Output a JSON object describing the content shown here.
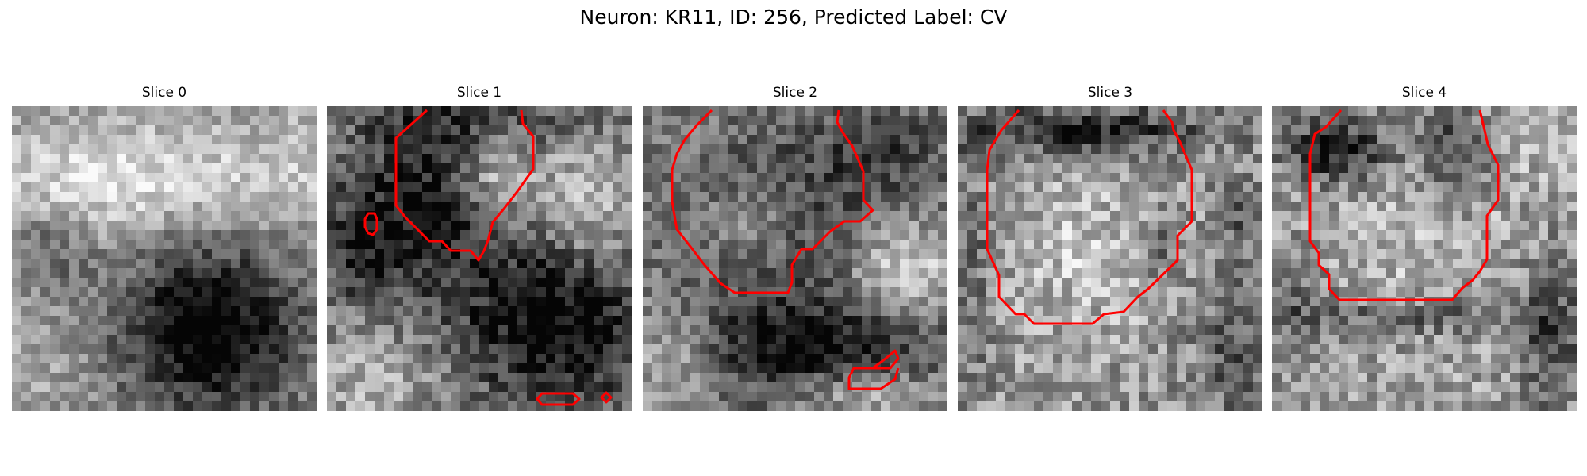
{
  "figure": {
    "title": "Neuron: KR11, ID: 256, Predicted Label: CV"
  },
  "overlay_color": "#ff0000",
  "panels": [
    {
      "title": "Slice 0"
    },
    {
      "title": "Slice 1"
    },
    {
      "title": "Slice 2"
    },
    {
      "title": "Slice 3"
    },
    {
      "title": "Slice 4"
    }
  ]
}
